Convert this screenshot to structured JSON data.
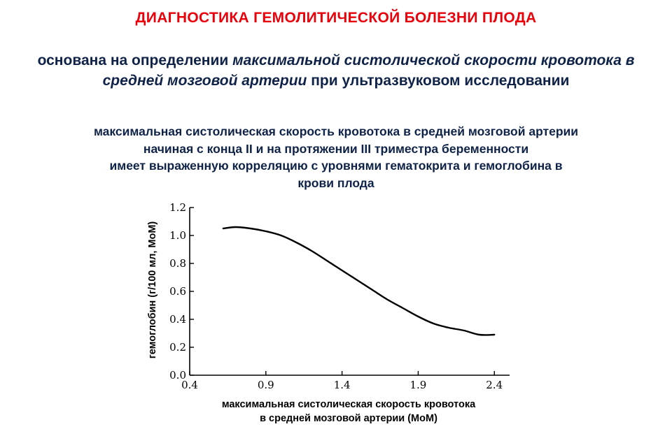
{
  "slide": {
    "title": "ДИАГНОСТИКА ГЕМОЛИТИЧЕСКОЙ БОЛЕЗНИ ПЛОДА",
    "subtitle": {
      "p1": "основана на определении ",
      "p2": "максимальной систолической скорости кровотока в средней мозговой артерии",
      "p3": " при ультразвуковом исследовании"
    },
    "description": [
      "максимальная систолическая скорость кровотока в средней мозговой артерии",
      "начиная с конца II и на протяжении III триместра беременности",
      "имеет выраженную корреляцию с уровнями гематокрита и гемоглобина в",
      "крови плода"
    ]
  },
  "colors": {
    "title": "#e8000b",
    "text": "#0f2248",
    "curve": "#000000"
  },
  "chart_data": {
    "type": "line",
    "title": "",
    "xlabel_lines": [
      "максимальная систолическая скорость кровотока",
      "в средней мозговой артерии (МоМ)"
    ],
    "ylabel": "гемоглобин (г/100 мл, МоМ)",
    "xlim": [
      0.4,
      2.5
    ],
    "ylim": [
      0.0,
      1.2
    ],
    "x_ticks": [
      "0.4",
      "0.9",
      "1.4",
      "1.9",
      "2.4"
    ],
    "y_ticks": [
      "0.0",
      "0.2",
      "0.4",
      "0.6",
      "0.8",
      "1.0",
      "1.2"
    ],
    "grid": false,
    "series": [
      {
        "x": [
          0.62,
          0.7,
          0.8,
          0.9,
          1.0,
          1.1,
          1.2,
          1.3,
          1.4,
          1.5,
          1.6,
          1.7,
          1.8,
          1.9,
          2.0,
          2.1,
          2.2,
          2.3,
          2.4
        ],
        "y": [
          1.05,
          1.06,
          1.05,
          1.03,
          1.0,
          0.95,
          0.89,
          0.82,
          0.75,
          0.68,
          0.61,
          0.54,
          0.48,
          0.42,
          0.37,
          0.34,
          0.32,
          0.29,
          0.29
        ]
      }
    ]
  }
}
